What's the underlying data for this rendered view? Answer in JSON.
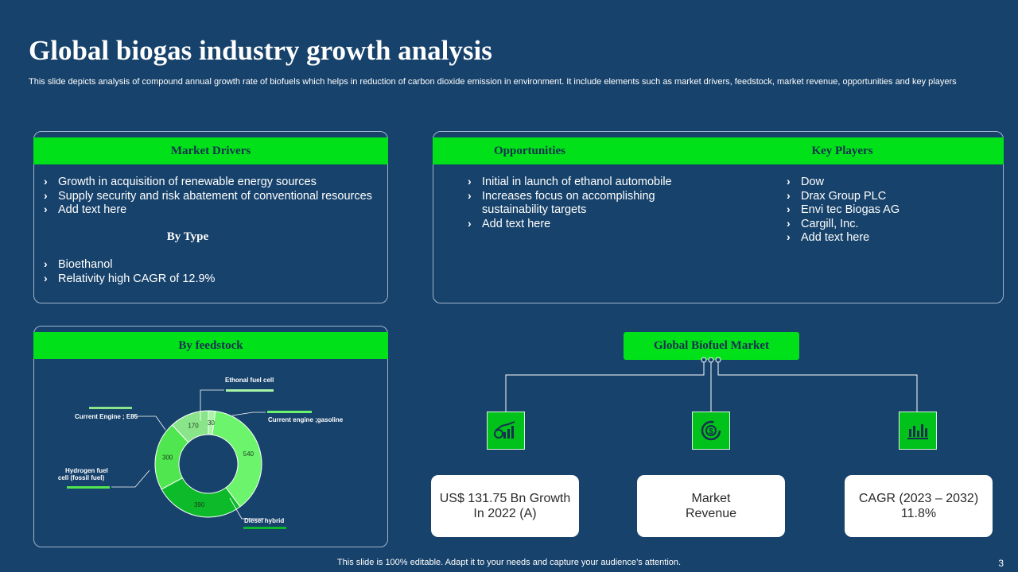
{
  "header": {
    "title": "Global biogas industry growth analysis",
    "subtitle": "This slide depicts analysis of compound annual growth rate of biofuels which helps in reduction of carbon dioxide emission in environment. It include elements such as market drivers, feedstock, market revenue, opportunities and key players"
  },
  "market_drivers": {
    "title": "Market Drivers",
    "items": [
      "Growth in acquisition of renewable energy sources",
      "Supply security and risk abatement of conventional resources",
      "Add text here"
    ],
    "by_type_title": "By Type",
    "by_type_items": [
      "Bioethanol",
      "Relativity high CAGR of 12.9%"
    ]
  },
  "opportunities": {
    "title": "Opportunities",
    "items": [
      "Initial in launch of ethanol automobile",
      "Increases focus on accomplishing sustainability targets",
      "Add text here"
    ]
  },
  "key_players": {
    "title": "Key Players",
    "items": [
      "Dow",
      "Drax Group PLC",
      "Envi tec Biogas AG",
      "Cargill, Inc.",
      "Add text here"
    ]
  },
  "feedstock": {
    "title": "By feedstock"
  },
  "chart_data": {
    "type": "pie",
    "variant": "donut",
    "title": "By feedstock",
    "categories": [
      "Ethonal fuel cell",
      "Current engine ;gasoline",
      "Diesel hybrid",
      "Hydrogen fuel cell (fossil fuel)",
      "Current Engine ; E85"
    ],
    "values": [
      30,
      540,
      390,
      300,
      170
    ],
    "colors": [
      "#a8f5a8",
      "#6cf56c",
      "#0dbb2a",
      "#50e650",
      "#8ae58a"
    ],
    "legend": "leader-line labels"
  },
  "biofuel_market": {
    "title": "Global Biofuel Market",
    "cards": [
      {
        "icon": "growth-chart-icon",
        "lines": [
          "US$ 131.75 Bn Growth",
          "In 2022 (A)"
        ]
      },
      {
        "icon": "revenue-cycle-icon",
        "lines": [
          "Market",
          "Revenue"
        ]
      },
      {
        "icon": "bar-chart-icon",
        "lines": [
          "CAGR (2023 – 2032)",
          "11.8%"
        ]
      }
    ]
  },
  "footer": {
    "note": "This slide is 100% editable. Adapt it to your needs and capture your audience’s attention.",
    "page": "3"
  }
}
